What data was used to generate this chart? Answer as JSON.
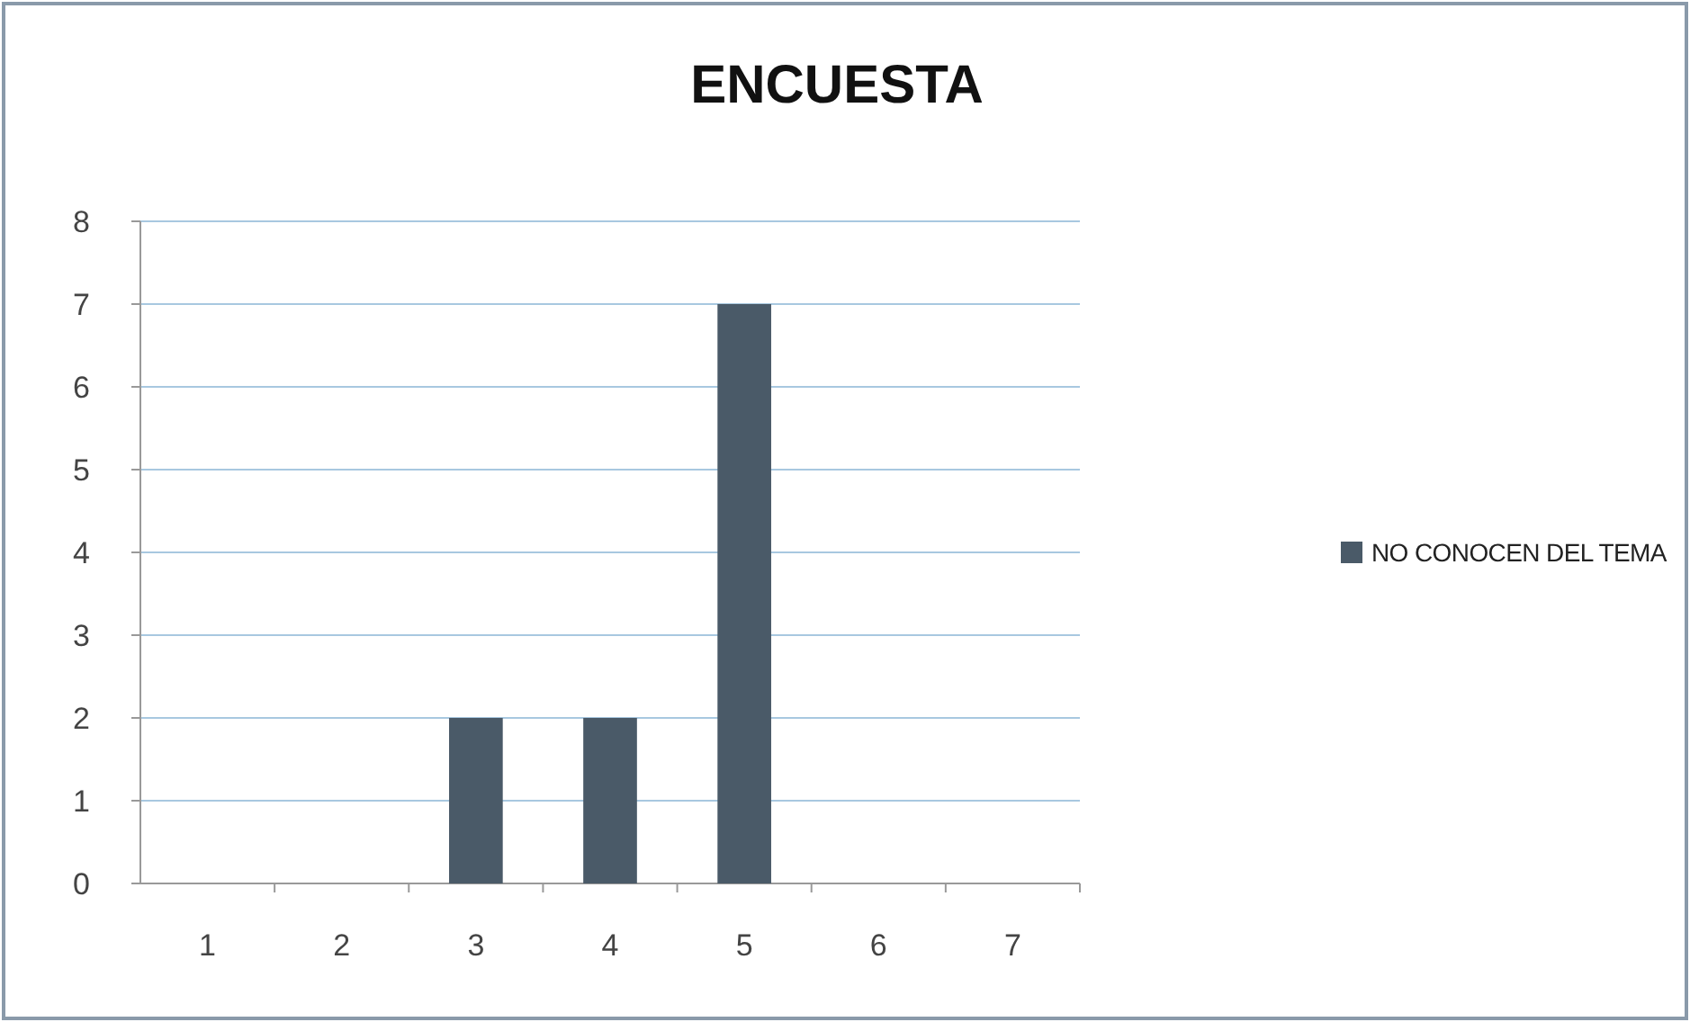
{
  "chart_data": {
    "type": "bar",
    "title": "ENCUESTA",
    "categories": [
      "1",
      "2",
      "3",
      "4",
      "5",
      "6",
      "7"
    ],
    "series": [
      {
        "name": "NO CONOCEN DEL TEMA",
        "color": "#4a5a68",
        "values": [
          0,
          0,
          2,
          2,
          7,
          0,
          0
        ]
      }
    ],
    "ylim": [
      0,
      8
    ],
    "yticks": [
      0,
      1,
      2,
      3,
      4,
      5,
      6,
      7,
      8
    ],
    "grid": "y",
    "legend": "right"
  }
}
